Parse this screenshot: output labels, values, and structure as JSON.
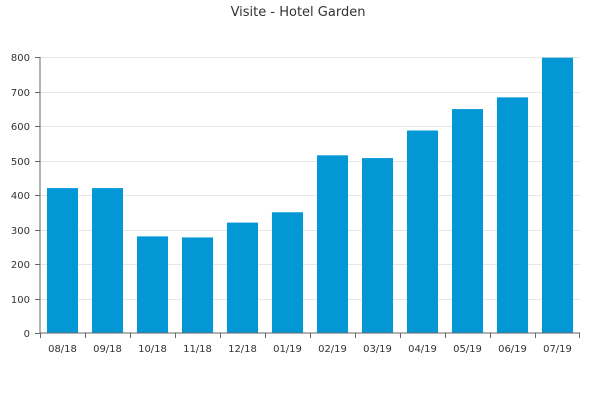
{
  "chart_data": {
    "type": "bar",
    "title": "Visite - Hotel Garden",
    "xlabel": "",
    "ylabel": "",
    "categories": [
      "08/18",
      "09/18",
      "10/18",
      "11/18",
      "12/18",
      "01/19",
      "02/19",
      "03/19",
      "04/19",
      "05/19",
      "06/19",
      "07/19"
    ],
    "values": [
      420,
      420,
      280,
      277,
      320,
      350,
      515,
      507,
      587,
      649,
      683,
      798
    ],
    "ylim": [
      0,
      800
    ],
    "yticks": [
      0,
      100,
      200,
      300,
      400,
      500,
      600,
      700,
      800
    ],
    "grid": true,
    "legend": "none",
    "bar_color": "#0397d6"
  }
}
